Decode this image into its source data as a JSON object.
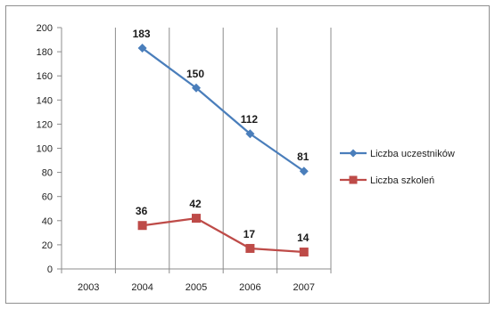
{
  "chart_data": {
    "type": "line",
    "title": "",
    "xlabel": "",
    "ylabel": "",
    "categories": [
      "2003",
      "2004",
      "2005",
      "2006",
      "2007"
    ],
    "ylim": [
      0,
      200
    ],
    "yticks": [
      0,
      20,
      40,
      60,
      80,
      100,
      120,
      140,
      160,
      180,
      200
    ],
    "grid": "vertical",
    "legend_position": "right",
    "series": [
      {
        "name": "Liczba uczestników",
        "color": "#4a7ebb",
        "marker": "diamond",
        "values": [
          null,
          183,
          150,
          112,
          81
        ],
        "labels": [
          "",
          "183",
          "150",
          "112",
          "81"
        ]
      },
      {
        "name": "Liczba szkoleń",
        "color": "#be4b48",
        "marker": "square",
        "values": [
          null,
          36,
          42,
          17,
          14
        ],
        "labels": [
          "",
          "36",
          "42",
          "17",
          "14"
        ]
      }
    ]
  }
}
